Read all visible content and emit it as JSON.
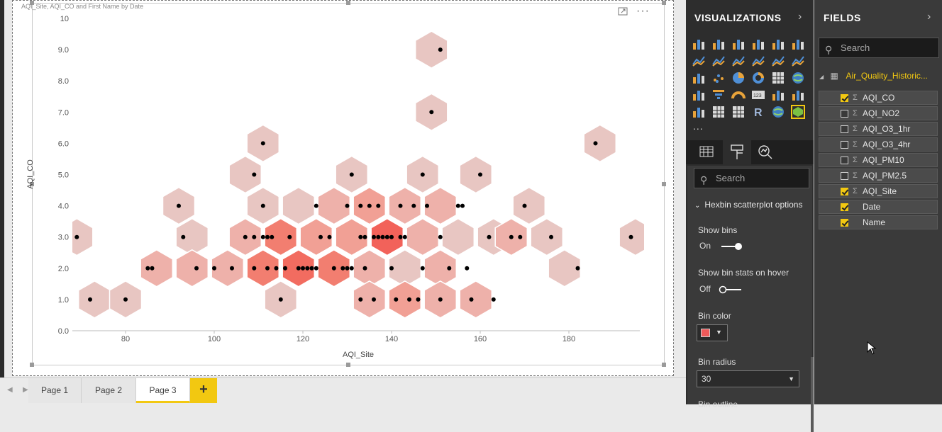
{
  "visual": {
    "title": "AQI_Site, AQI_CO and First Name by Date",
    "focus_icon": "focus-mode-icon",
    "more_icon": "more-options-icon"
  },
  "chart_data": {
    "type": "scatter",
    "subtype": "hexbin",
    "xlabel": "AQI_Site",
    "ylabel": "AQI_CO",
    "xlim": [
      68,
      196
    ],
    "ylim": [
      0,
      10
    ],
    "x_ticks": [
      80,
      100,
      120,
      140,
      160,
      180
    ],
    "y_ticks": [
      "0.0",
      "1.0",
      "2.0",
      "3.0",
      "4.0",
      "5.0",
      "6.0",
      "7.0",
      "8.0",
      "9.0",
      "10"
    ],
    "bin_color": "#f05a5a",
    "bin_radius": 30,
    "points": [
      [
        69,
        3
      ],
      [
        72,
        1
      ],
      [
        80,
        1
      ],
      [
        85,
        2
      ],
      [
        86,
        2
      ],
      [
        92,
        4
      ],
      [
        93,
        3
      ],
      [
        96,
        2
      ],
      [
        100,
        2
      ],
      [
        104,
        2
      ],
      [
        107,
        3
      ],
      [
        109,
        5
      ],
      [
        109,
        3
      ],
      [
        109,
        2
      ],
      [
        111,
        6
      ],
      [
        111,
        4
      ],
      [
        111,
        3
      ],
      [
        112,
        3
      ],
      [
        113,
        3
      ],
      [
        112,
        2
      ],
      [
        114,
        2
      ],
      [
        115,
        1
      ],
      [
        116,
        2
      ],
      [
        117,
        3
      ],
      [
        119,
        2
      ],
      [
        120,
        2
      ],
      [
        121,
        2
      ],
      [
        122,
        2
      ],
      [
        123,
        2
      ],
      [
        123,
        4
      ],
      [
        124,
        3
      ],
      [
        126,
        3
      ],
      [
        127,
        2
      ],
      [
        129,
        2
      ],
      [
        130,
        2
      ],
      [
        131,
        2
      ],
      [
        130,
        4
      ],
      [
        131,
        5
      ],
      [
        133,
        4
      ],
      [
        134,
        2
      ],
      [
        135,
        4
      ],
      [
        137,
        4
      ],
      [
        133,
        3
      ],
      [
        134,
        3
      ],
      [
        136,
        3
      ],
      [
        137,
        3
      ],
      [
        138,
        3
      ],
      [
        139,
        3
      ],
      [
        140,
        3
      ],
      [
        142,
        3
      ],
      [
        143,
        3
      ],
      [
        142,
        4
      ],
      [
        140,
        2
      ],
      [
        133,
        1
      ],
      [
        136,
        1
      ],
      [
        141,
        1
      ],
      [
        144,
        1
      ],
      [
        146,
        1
      ],
      [
        147,
        2
      ],
      [
        145,
        4
      ],
      [
        147,
        5
      ],
      [
        148,
        4
      ],
      [
        149,
        7
      ],
      [
        151,
        9
      ],
      [
        151,
        3
      ],
      [
        151,
        1
      ],
      [
        153,
        2
      ],
      [
        155,
        4
      ],
      [
        156,
        4
      ],
      [
        157,
        2
      ],
      [
        158,
        1
      ],
      [
        160,
        5
      ],
      [
        162,
        3
      ],
      [
        163,
        1
      ],
      [
        167,
        3
      ],
      [
        169,
        3
      ],
      [
        170,
        4
      ],
      [
        176,
        3
      ],
      [
        182,
        2
      ],
      [
        186,
        6
      ],
      [
        194,
        3
      ]
    ],
    "bins": [
      {
        "x": 69,
        "y": 3.0,
        "count": 1
      },
      {
        "x": 73,
        "y": 1.0,
        "count": 1
      },
      {
        "x": 80,
        "y": 1.0,
        "count": 1
      },
      {
        "x": 87,
        "y": 2.0,
        "count": 2
      },
      {
        "x": 92,
        "y": 4.0,
        "count": 1
      },
      {
        "x": 95,
        "y": 3.0,
        "count": 1
      },
      {
        "x": 95,
        "y": 2.0,
        "count": 2
      },
      {
        "x": 103,
        "y": 2.0,
        "count": 2
      },
      {
        "x": 107,
        "y": 5.0,
        "count": 1
      },
      {
        "x": 107,
        "y": 3.0,
        "count": 2
      },
      {
        "x": 111,
        "y": 6.0,
        "count": 1
      },
      {
        "x": 111,
        "y": 4.0,
        "count": 1
      },
      {
        "x": 111,
        "y": 2.0,
        "count": 4
      },
      {
        "x": 115,
        "y": 3.0,
        "count": 4
      },
      {
        "x": 115,
        "y": 1.0,
        "count": 1
      },
      {
        "x": 119,
        "y": 4.0,
        "count": 1
      },
      {
        "x": 119,
        "y": 2.0,
        "count": 5
      },
      {
        "x": 123,
        "y": 3.0,
        "count": 3
      },
      {
        "x": 127,
        "y": 4.0,
        "count": 2
      },
      {
        "x": 127,
        "y": 2.0,
        "count": 4
      },
      {
        "x": 131,
        "y": 5.0,
        "count": 1
      },
      {
        "x": 131,
        "y": 3.0,
        "count": 3
      },
      {
        "x": 135,
        "y": 4.0,
        "count": 3
      },
      {
        "x": 135,
        "y": 2.0,
        "count": 2
      },
      {
        "x": 135,
        "y": 1.0,
        "count": 2
      },
      {
        "x": 139,
        "y": 3.0,
        "count": 6
      },
      {
        "x": 143,
        "y": 4.0,
        "count": 2
      },
      {
        "x": 143,
        "y": 2.0,
        "count": 1
      },
      {
        "x": 143,
        "y": 1.0,
        "count": 3
      },
      {
        "x": 147,
        "y": 5.0,
        "count": 1
      },
      {
        "x": 147,
        "y": 3.0,
        "count": 2
      },
      {
        "x": 149,
        "y": 9.0,
        "count": 1
      },
      {
        "x": 149,
        "y": 7.0,
        "count": 1
      },
      {
        "x": 151,
        "y": 4.0,
        "count": 2
      },
      {
        "x": 151,
        "y": 2.0,
        "count": 2
      },
      {
        "x": 151,
        "y": 1.0,
        "count": 2
      },
      {
        "x": 155,
        "y": 3.0,
        "count": 1
      },
      {
        "x": 159,
        "y": 5.0,
        "count": 1
      },
      {
        "x": 159,
        "y": 1.0,
        "count": 2
      },
      {
        "x": 163,
        "y": 3.0,
        "count": 1
      },
      {
        "x": 167,
        "y": 3.0,
        "count": 2
      },
      {
        "x": 171,
        "y": 4.0,
        "count": 1
      },
      {
        "x": 175,
        "y": 3.0,
        "count": 1
      },
      {
        "x": 179,
        "y": 2.0,
        "count": 1
      },
      {
        "x": 187,
        "y": 6.0,
        "count": 1
      },
      {
        "x": 195,
        "y": 3.0,
        "count": 1
      }
    ]
  },
  "tabs": {
    "items": [
      {
        "label": "Page 1",
        "active": false
      },
      {
        "label": "Page 2",
        "active": false
      },
      {
        "label": "Page 3",
        "active": true
      }
    ],
    "add_label": "+"
  },
  "visualizations": {
    "header": "VISUALIZATIONS",
    "icons": [
      "stacked-bar-icon",
      "stacked-column-icon",
      "clustered-bar-icon",
      "clustered-column-icon",
      "100-bar-icon",
      "100-column-icon",
      "line-chart-icon",
      "area-chart-icon",
      "stacked-area-icon",
      "line-column-icon",
      "line-stacked-column-icon",
      "ribbon-chart-icon",
      "waterfall-icon",
      "scatter-icon",
      "pie-chart-icon",
      "donut-chart-icon",
      "treemap-icon",
      "map-icon",
      "filled-map-icon",
      "funnel-icon",
      "gauge-icon",
      "card-icon",
      "multirow-card-icon",
      "kpi-icon",
      "slicer-icon",
      "table-icon",
      "matrix-icon",
      "r-visual-icon",
      "globe-icon",
      "hexbin-icon"
    ],
    "more": "...",
    "tab_icons": [
      "fields-well-icon",
      "paint-roller-icon",
      "analytics-icon"
    ],
    "search_placeholder": "Search",
    "section": "Hexbin scatterplot options",
    "show_bins_label": "Show bins",
    "show_bins_value": "On",
    "show_bin_stats_label": "Show bin stats on hover",
    "show_bin_stats_value": "Off",
    "bin_color_label": "Bin color",
    "bin_radius_label": "Bin radius",
    "bin_radius_value": "30",
    "next_label": "Bin outline"
  },
  "fields": {
    "header": "FIELDS",
    "search_placeholder": "Search",
    "table_name": "Air_Quality_Historic...",
    "items": [
      {
        "name": "AQI_CO",
        "checked": true,
        "sigma": true
      },
      {
        "name": "AQI_NO2",
        "checked": false,
        "sigma": true
      },
      {
        "name": "AQI_O3_1hr",
        "checked": false,
        "sigma": true
      },
      {
        "name": "AQI_O3_4hr",
        "checked": false,
        "sigma": true
      },
      {
        "name": "AQI_PM10",
        "checked": false,
        "sigma": true
      },
      {
        "name": "AQI_PM2.5",
        "checked": false,
        "sigma": true
      },
      {
        "name": "AQI_Site",
        "checked": true,
        "sigma": true
      },
      {
        "name": "Date",
        "checked": true,
        "sigma": false
      },
      {
        "name": "Name",
        "checked": true,
        "sigma": false
      }
    ]
  }
}
